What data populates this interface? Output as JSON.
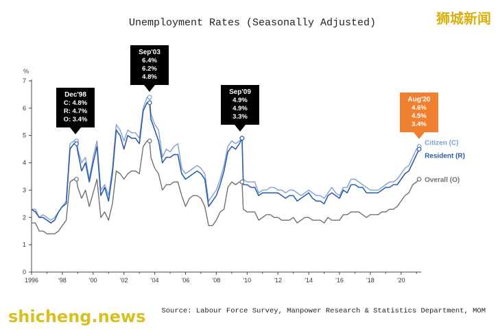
{
  "watermark_top": "狮城新闻",
  "watermark_bottom": "shicheng.news",
  "colors": {
    "citizen": "#7f9fd4",
    "resident": "#2f5ca8",
    "overall": "#707070",
    "callout": "#000000",
    "callout_highlight": "#f08030",
    "axis": "#444444",
    "watermark_top": "#d8b010",
    "watermark_bottom": "#d8c020"
  },
  "chart_data": {
    "type": "line",
    "title": "Unemployment Rates (Seasonally Adjusted)",
    "source": "Source: Labour Force Survey, Manpower Research & Statistics Department, MOM",
    "ylabel": "%",
    "ylim": [
      0,
      7
    ],
    "xlim": [
      1996,
      2021.3
    ],
    "yticks": [
      0,
      1,
      2,
      3,
      4,
      5,
      6,
      7
    ],
    "xticks": [
      {
        "value": 1996,
        "label": "1996"
      },
      {
        "value": 1998,
        "label": "'98"
      },
      {
        "value": 2000,
        "label": "'00"
      },
      {
        "value": 2002,
        "label": "'02"
      },
      {
        "value": 2004,
        "label": "'04"
      },
      {
        "value": 2006,
        "label": "'06"
      },
      {
        "value": 2008,
        "label": "'08"
      },
      {
        "value": 2010,
        "label": "'10"
      },
      {
        "value": 2012,
        "label": "'12"
      },
      {
        "value": 2014,
        "label": "'14"
      },
      {
        "value": 2016,
        "label": "'16"
      },
      {
        "value": 2018,
        "label": "'18"
      },
      {
        "value": 2020,
        "label": "'20"
      }
    ],
    "grid": false,
    "series": [
      {
        "name": "Citizen (C)",
        "key": "citizen",
        "x": [
          1996.0,
          1996.25,
          1996.5,
          1996.75,
          1997.0,
          1997.25,
          1997.5,
          1997.75,
          1998.0,
          1998.25,
          1998.5,
          1998.75,
          1998.92,
          1999.0,
          1999.25,
          1999.5,
          1999.75,
          2000.0,
          2000.25,
          2000.5,
          2000.75,
          2001.0,
          2001.25,
          2001.5,
          2001.75,
          2002.0,
          2002.25,
          2002.5,
          2002.75,
          2003.0,
          2003.25,
          2003.5,
          2003.67,
          2003.75,
          2004.0,
          2004.25,
          2004.5,
          2004.75,
          2005.0,
          2005.25,
          2005.5,
          2005.75,
          2006.0,
          2006.25,
          2006.5,
          2006.75,
          2007.0,
          2007.25,
          2007.5,
          2007.75,
          2008.0,
          2008.25,
          2008.5,
          2008.75,
          2009.0,
          2009.25,
          2009.5,
          2009.67,
          2009.75,
          2010.0,
          2010.25,
          2010.5,
          2010.75,
          2011.0,
          2011.25,
          2011.5,
          2011.75,
          2012.0,
          2012.25,
          2012.5,
          2012.75,
          2013.0,
          2013.25,
          2013.5,
          2013.75,
          2014.0,
          2014.25,
          2014.5,
          2014.75,
          2015.0,
          2015.25,
          2015.5,
          2015.75,
          2016.0,
          2016.25,
          2016.5,
          2016.75,
          2017.0,
          2017.25,
          2017.5,
          2017.75,
          2018.0,
          2018.25,
          2018.5,
          2018.75,
          2019.0,
          2019.25,
          2019.5,
          2019.75,
          2020.0,
          2020.25,
          2020.5,
          2020.75,
          2021.0,
          2021.17
        ],
        "y": [
          2.3,
          2.3,
          2.0,
          2.1,
          2.0,
          1.9,
          2.0,
          2.2,
          2.4,
          2.6,
          4.7,
          4.8,
          4.8,
          4.5,
          4.0,
          4.2,
          3.4,
          4.2,
          4.8,
          3.0,
          3.2,
          2.8,
          3.8,
          5.4,
          5.2,
          4.8,
          5.2,
          5.1,
          5.1,
          4.9,
          6.0,
          6.4,
          6.4,
          5.8,
          5.4,
          5.2,
          4.2,
          4.5,
          4.4,
          4.6,
          4.7,
          3.8,
          3.6,
          3.7,
          3.8,
          3.9,
          3.8,
          3.6,
          2.6,
          2.8,
          3.0,
          3.4,
          3.9,
          4.6,
          4.8,
          4.7,
          4.8,
          4.9,
          3.4,
          3.3,
          3.3,
          3.3,
          2.9,
          3.0,
          3.0,
          3.1,
          3.1,
          3.0,
          3.0,
          2.9,
          3.0,
          3.0,
          2.9,
          2.8,
          2.9,
          3.0,
          2.9,
          2.8,
          2.8,
          2.7,
          2.9,
          3.1,
          2.9,
          2.8,
          3.1,
          3.1,
          3.4,
          3.4,
          3.3,
          3.2,
          3.1,
          3.0,
          3.0,
          3.0,
          3.1,
          3.2,
          3.3,
          3.3,
          3.4,
          3.6,
          3.8,
          3.9,
          4.2,
          4.5,
          4.6
        ]
      },
      {
        "name": "Resident (R)",
        "key": "resident",
        "x": [
          1996.0,
          1996.25,
          1996.5,
          1996.75,
          1997.0,
          1997.25,
          1997.5,
          1997.75,
          1998.0,
          1998.25,
          1998.5,
          1998.75,
          1998.92,
          1999.0,
          1999.25,
          1999.5,
          1999.75,
          2000.0,
          2000.25,
          2000.5,
          2000.75,
          2001.0,
          2001.25,
          2001.5,
          2001.75,
          2002.0,
          2002.25,
          2002.5,
          2002.75,
          2003.0,
          2003.25,
          2003.5,
          2003.67,
          2003.75,
          2004.0,
          2004.25,
          2004.5,
          2004.75,
          2005.0,
          2005.25,
          2005.5,
          2005.75,
          2006.0,
          2006.25,
          2006.5,
          2006.75,
          2007.0,
          2007.25,
          2007.5,
          2007.75,
          2008.0,
          2008.25,
          2008.5,
          2008.75,
          2009.0,
          2009.25,
          2009.5,
          2009.67,
          2009.75,
          2010.0,
          2010.25,
          2010.5,
          2010.75,
          2011.0,
          2011.25,
          2011.5,
          2011.75,
          2012.0,
          2012.25,
          2012.5,
          2012.75,
          2013.0,
          2013.25,
          2013.5,
          2013.75,
          2014.0,
          2014.25,
          2014.5,
          2014.75,
          2015.0,
          2015.25,
          2015.5,
          2015.75,
          2016.0,
          2016.25,
          2016.5,
          2016.75,
          2017.0,
          2017.25,
          2017.5,
          2017.75,
          2018.0,
          2018.25,
          2018.5,
          2018.75,
          2019.0,
          2019.25,
          2019.5,
          2019.75,
          2020.0,
          2020.25,
          2020.5,
          2020.75,
          2021.0,
          2021.17
        ],
        "y": [
          2.3,
          2.2,
          2.0,
          2.0,
          1.9,
          1.8,
          1.9,
          2.2,
          2.4,
          2.5,
          4.5,
          4.7,
          4.7,
          4.4,
          3.7,
          4.0,
          3.3,
          4.0,
          4.6,
          2.8,
          3.1,
          2.6,
          3.6,
          5.2,
          5.0,
          4.5,
          5.0,
          4.9,
          4.9,
          4.7,
          5.9,
          6.2,
          6.2,
          5.6,
          5.2,
          4.8,
          4.0,
          4.2,
          4.2,
          4.3,
          4.3,
          3.6,
          3.4,
          3.5,
          3.6,
          3.7,
          3.6,
          3.4,
          2.4,
          2.6,
          2.8,
          3.2,
          3.7,
          4.4,
          4.6,
          4.5,
          4.7,
          4.9,
          3.2,
          3.2,
          3.1,
          3.1,
          2.8,
          2.9,
          2.9,
          2.9,
          2.9,
          2.9,
          2.8,
          2.7,
          2.8,
          2.8,
          2.6,
          2.7,
          2.8,
          2.9,
          2.7,
          2.6,
          2.6,
          2.5,
          2.8,
          2.9,
          2.8,
          2.7,
          3.0,
          2.9,
          3.2,
          3.2,
          3.1,
          3.1,
          2.9,
          2.9,
          2.9,
          2.9,
          3.0,
          3.1,
          3.1,
          3.2,
          3.2,
          3.4,
          3.6,
          3.7,
          4.0,
          4.3,
          4.5
        ]
      },
      {
        "name": "Overall (O)",
        "key": "overall",
        "x": [
          1996.0,
          1996.25,
          1996.5,
          1996.75,
          1997.0,
          1997.25,
          1997.5,
          1997.75,
          1998.0,
          1998.25,
          1998.5,
          1998.75,
          1998.92,
          1999.0,
          1999.25,
          1999.5,
          1999.75,
          2000.0,
          2000.25,
          2000.5,
          2000.75,
          2001.0,
          2001.25,
          2001.5,
          2001.75,
          2002.0,
          2002.25,
          2002.5,
          2002.75,
          2003.0,
          2003.25,
          2003.5,
          2003.67,
          2003.75,
          2004.0,
          2004.25,
          2004.5,
          2004.75,
          2005.0,
          2005.25,
          2005.5,
          2005.75,
          2006.0,
          2006.25,
          2006.5,
          2006.75,
          2007.0,
          2007.25,
          2007.5,
          2007.75,
          2008.0,
          2008.25,
          2008.5,
          2008.75,
          2009.0,
          2009.25,
          2009.5,
          2009.67,
          2009.75,
          2010.0,
          2010.25,
          2010.5,
          2010.75,
          2011.0,
          2011.25,
          2011.5,
          2011.75,
          2012.0,
          2012.25,
          2012.5,
          2012.75,
          2013.0,
          2013.25,
          2013.5,
          2013.75,
          2014.0,
          2014.25,
          2014.5,
          2014.75,
          2015.0,
          2015.25,
          2015.5,
          2015.75,
          2016.0,
          2016.25,
          2016.5,
          2016.75,
          2017.0,
          2017.25,
          2017.5,
          2017.75,
          2018.0,
          2018.25,
          2018.5,
          2018.75,
          2019.0,
          2019.25,
          2019.5,
          2019.75,
          2020.0,
          2020.25,
          2020.5,
          2020.75,
          2021.0,
          2021.17
        ],
        "y": [
          1.8,
          1.8,
          1.5,
          1.5,
          1.4,
          1.4,
          1.4,
          1.5,
          1.7,
          1.9,
          3.3,
          3.4,
          3.4,
          3.1,
          2.7,
          3.0,
          2.4,
          2.9,
          3.4,
          2.0,
          2.2,
          1.9,
          2.5,
          3.7,
          3.6,
          3.4,
          3.6,
          3.7,
          3.7,
          3.6,
          4.6,
          4.8,
          4.8,
          4.2,
          3.8,
          3.6,
          3.0,
          3.2,
          3.2,
          3.3,
          3.3,
          2.8,
          2.4,
          2.7,
          2.8,
          2.8,
          2.7,
          2.4,
          1.7,
          1.7,
          1.9,
          2.2,
          2.3,
          3.1,
          3.3,
          3.2,
          3.3,
          3.3,
          2.3,
          2.2,
          2.2,
          2.2,
          1.9,
          2.0,
          2.1,
          2.1,
          2.0,
          2.0,
          1.9,
          1.9,
          1.9,
          2.0,
          1.8,
          1.9,
          2.0,
          2.0,
          1.9,
          1.9,
          1.9,
          1.8,
          2.0,
          1.9,
          1.9,
          1.9,
          2.1,
          2.1,
          2.2,
          2.2,
          2.2,
          2.1,
          2.0,
          2.1,
          2.1,
          2.1,
          2.2,
          2.2,
          2.3,
          2.3,
          2.4,
          2.6,
          2.8,
          2.9,
          3.2,
          3.3,
          3.4
        ]
      }
    ],
    "legend": [
      {
        "label": "Citizen (C)",
        "key": "citizen",
        "x": 2021.17,
        "y": 4.6
      },
      {
        "label": "Resident (R)",
        "key": "resident",
        "x": 2021.17,
        "y": 4.5
      },
      {
        "label": "Overall (O)",
        "key": "overall",
        "x": 2021.17,
        "y": 3.4
      }
    ],
    "annotations": [
      {
        "key": "dec98",
        "lines": [
          "Dec'98",
          "C: 4.8%",
          "R: 4.7%",
          "O: 3.4%"
        ],
        "x": 1998.92,
        "markers": [
          4.8,
          4.7,
          3.4
        ],
        "highlight": false
      },
      {
        "key": "sep03",
        "lines": [
          "Sep'03",
          "6.4%",
          "6.2%",
          "4.8%"
        ],
        "x": 2003.67,
        "markers": [
          6.4,
          6.2,
          4.8
        ],
        "highlight": false
      },
      {
        "key": "sep09",
        "lines": [
          "Sep'09",
          "4.9%",
          "4.9%",
          "3.3%"
        ],
        "x": 2009.67,
        "markers": [
          4.9,
          4.9,
          3.3
        ],
        "highlight": false
      },
      {
        "key": "aug20",
        "lines": [
          "Aug'20",
          "4.6%",
          "4.5%",
          "3.4%"
        ],
        "x": 2021.17,
        "markers": [
          4.6,
          4.5,
          3.4
        ],
        "highlight": true
      }
    ]
  }
}
